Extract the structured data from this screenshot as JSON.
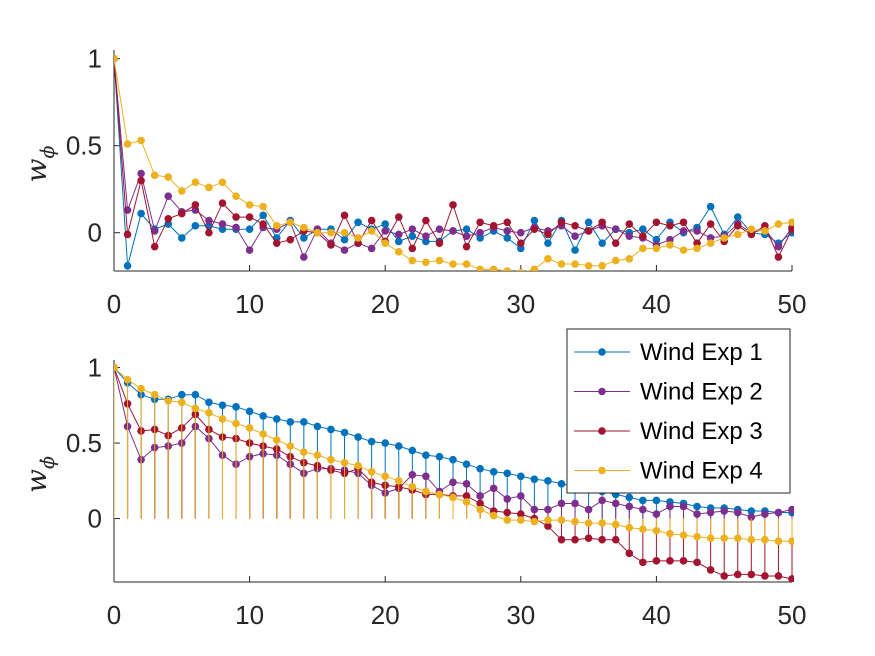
{
  "chart_data": [
    {
      "type": "line",
      "title": "",
      "xlabel": "",
      "ylabel": "w",
      "ylabel_subscript": "ϕ",
      "xlim": [
        0,
        50
      ],
      "ylim": [
        -0.22,
        1.05
      ],
      "xticks": [
        0,
        10,
        20,
        30,
        40,
        50
      ],
      "yticks": [
        0,
        0.5,
        1
      ],
      "ytick_labels": [
        "0",
        "0.5",
        "1"
      ],
      "grid": false,
      "x": [
        0,
        1,
        2,
        3,
        4,
        5,
        6,
        7,
        8,
        9,
        10,
        11,
        12,
        13,
        14,
        15,
        16,
        17,
        18,
        19,
        20,
        21,
        22,
        23,
        24,
        25,
        26,
        27,
        28,
        29,
        30,
        31,
        32,
        33,
        34,
        35,
        36,
        37,
        38,
        39,
        40,
        41,
        42,
        43,
        44,
        45,
        46,
        47,
        48,
        49,
        50
      ],
      "series": [
        {
          "name": "Wind Exp 1",
          "color": "#0072BD",
          "values": [
            1,
            -0.19,
            0.11,
            0.02,
            0.05,
            -0.03,
            0.04,
            0.04,
            0.02,
            0.02,
            0.02,
            0.1,
            -0.03,
            0.07,
            -0.03,
            0.02,
            0.02,
            -0.04,
            0.06,
            0.02,
            0.05,
            -0.05,
            -0.02,
            -0.05,
            -0.05,
            0.01,
            0.02,
            -0.03,
            0.01,
            -0.03,
            -0.09,
            0.07,
            -0.06,
            0.07,
            -0.1,
            0.06,
            -0.06,
            0.02,
            0.0,
            0.02,
            -0.04,
            0.06,
            0.0,
            0.03,
            0.15,
            -0.01,
            0.09,
            0.0,
            -0.01,
            -0.06,
            0.0
          ]
        },
        {
          "name": "Wind Exp 2",
          "color": "#7E2F8E",
          "values": [
            1,
            0.13,
            0.34,
            0.01,
            0.21,
            0.12,
            0.13,
            0.07,
            0.05,
            0.03,
            -0.1,
            0.03,
            0.02,
            0.06,
            -0.14,
            0.02,
            -0.06,
            -0.1,
            -0.06,
            -0.09,
            0.01,
            -0.01,
            0.02,
            -0.02,
            0.02,
            0.01,
            -0.02,
            0.0,
            0.03,
            0.01,
            0.0,
            0.03,
            0.01,
            0.04,
            -0.02,
            0.01,
            0.04,
            0.02,
            -0.02,
            -0.03,
            -0.07,
            -0.04,
            0.01,
            0.01,
            -0.03,
            -0.02,
            0.05,
            0.0,
            0.02,
            -0.08,
            0.03
          ]
        },
        {
          "name": "Wind Exp 3",
          "color": "#A2142F",
          "values": [
            1,
            -0.01,
            0.3,
            -0.08,
            0.08,
            0.11,
            0.16,
            0.0,
            0.17,
            0.09,
            0.09,
            0.05,
            -0.06,
            -0.04,
            0.01,
            0.0,
            -0.07,
            0.1,
            -0.06,
            0.07,
            -0.05,
            0.09,
            -0.09,
            0.07,
            -0.06,
            0.16,
            -0.08,
            0.06,
            0.04,
            0.06,
            -0.06,
            0.02,
            -0.01,
            0.06,
            0.04,
            0.01,
            0.06,
            -0.06,
            0.05,
            -0.02,
            0.06,
            0.04,
            0.06,
            -0.06,
            0.05,
            -0.05,
            0.04,
            -0.01,
            0.04,
            -0.14,
            0.02
          ]
        },
        {
          "name": "Wind Exp 4",
          "color": "#EDB120",
          "values": [
            1,
            0.51,
            0.53,
            0.33,
            0.32,
            0.24,
            0.29,
            0.26,
            0.29,
            0.21,
            0.16,
            0.15,
            0.04,
            0.06,
            0.03,
            0.0,
            0.0,
            0.0,
            -0.03,
            0.01,
            -0.06,
            -0.11,
            -0.16,
            -0.17,
            -0.16,
            -0.18,
            -0.18,
            -0.21,
            -0.21,
            -0.22,
            -0.23,
            -0.21,
            -0.15,
            -0.18,
            -0.18,
            -0.19,
            -0.19,
            -0.16,
            -0.15,
            -0.09,
            -0.09,
            -0.07,
            -0.1,
            -0.09,
            -0.06,
            -0.03,
            -0.01,
            0.02,
            0.01,
            0.05,
            0.06
          ]
        }
      ]
    },
    {
      "type": "line",
      "title": "",
      "xlabel": "",
      "ylabel": "w",
      "ylabel_subscript": "ϕ̇",
      "xlim": [
        0,
        50
      ],
      "ylim": [
        -0.42,
        1.05
      ],
      "xticks": [
        0,
        10,
        20,
        30,
        40,
        50
      ],
      "yticks": [
        0,
        0.5,
        1
      ],
      "ytick_labels": [
        "0",
        "0.5",
        "1"
      ],
      "grid": false,
      "legend_position": "top-right",
      "x": [
        0,
        1,
        2,
        3,
        4,
        5,
        6,
        7,
        8,
        9,
        10,
        11,
        12,
        13,
        14,
        15,
        16,
        17,
        18,
        19,
        20,
        21,
        22,
        23,
        24,
        25,
        26,
        27,
        28,
        29,
        30,
        31,
        32,
        33,
        34,
        35,
        36,
        37,
        38,
        39,
        40,
        41,
        42,
        43,
        44,
        45,
        46,
        47,
        48,
        49,
        50
      ],
      "series": [
        {
          "name": "Wind Exp 1",
          "color": "#0072BD",
          "values": [
            1,
            0.9,
            0.82,
            0.79,
            0.79,
            0.82,
            0.82,
            0.77,
            0.75,
            0.74,
            0.71,
            0.68,
            0.66,
            0.64,
            0.64,
            0.61,
            0.59,
            0.57,
            0.54,
            0.51,
            0.5,
            0.48,
            0.45,
            0.42,
            0.41,
            0.39,
            0.36,
            0.33,
            0.31,
            0.3,
            0.28,
            0.26,
            0.25,
            0.23,
            0.21,
            0.19,
            0.18,
            0.16,
            0.14,
            0.12,
            0.12,
            0.11,
            0.1,
            0.08,
            0.07,
            0.07,
            0.06,
            0.05,
            0.05,
            0.04,
            0.04
          ]
        },
        {
          "name": "Wind Exp 2",
          "color": "#7E2F8E",
          "values": [
            1,
            0.61,
            0.39,
            0.47,
            0.48,
            0.5,
            0.61,
            0.53,
            0.42,
            0.36,
            0.41,
            0.43,
            0.42,
            0.36,
            0.3,
            0.33,
            0.33,
            0.32,
            0.3,
            0.22,
            0.17,
            0.2,
            0.29,
            0.28,
            0.18,
            0.24,
            0.23,
            0.15,
            0.2,
            0.13,
            0.15,
            0.06,
            0.06,
            0.1,
            0.1,
            0.06,
            0.12,
            0.1,
            0.08,
            0.06,
            0.03,
            0.08,
            0.08,
            0.03,
            0.04,
            0.05,
            0.04,
            0.01,
            0.03,
            0.04,
            0.06
          ]
        },
        {
          "name": "Wind Exp 3",
          "color": "#A2142F",
          "values": [
            1,
            0.76,
            0.58,
            0.59,
            0.55,
            0.6,
            0.69,
            0.59,
            0.54,
            0.53,
            0.5,
            0.48,
            0.46,
            0.41,
            0.37,
            0.35,
            0.32,
            0.3,
            0.33,
            0.24,
            0.22,
            0.21,
            0.19,
            0.16,
            0.16,
            0.15,
            0.15,
            0.1,
            0.05,
            0.04,
            0.03,
            0.0,
            -0.05,
            -0.14,
            -0.14,
            -0.13,
            -0.14,
            -0.14,
            -0.23,
            -0.29,
            -0.28,
            -0.28,
            -0.28,
            -0.29,
            -0.34,
            -0.38,
            -0.37,
            -0.37,
            -0.38,
            -0.38,
            -0.4
          ]
        },
        {
          "name": "Wind Exp 4",
          "color": "#EDB120",
          "values": [
            1,
            0.92,
            0.86,
            0.82,
            0.78,
            0.77,
            0.73,
            0.7,
            0.66,
            0.63,
            0.6,
            0.56,
            0.52,
            0.48,
            0.44,
            0.42,
            0.39,
            0.37,
            0.35,
            0.31,
            0.28,
            0.25,
            0.21,
            0.18,
            0.16,
            0.14,
            0.11,
            0.06,
            0.02,
            -0.01,
            -0.01,
            -0.02,
            -0.01,
            -0.01,
            -0.02,
            -0.03,
            -0.03,
            -0.04,
            -0.06,
            -0.07,
            -0.08,
            -0.1,
            -0.11,
            -0.12,
            -0.13,
            -0.13,
            -0.13,
            -0.14,
            -0.14,
            -0.15,
            -0.15
          ]
        }
      ]
    }
  ]
}
